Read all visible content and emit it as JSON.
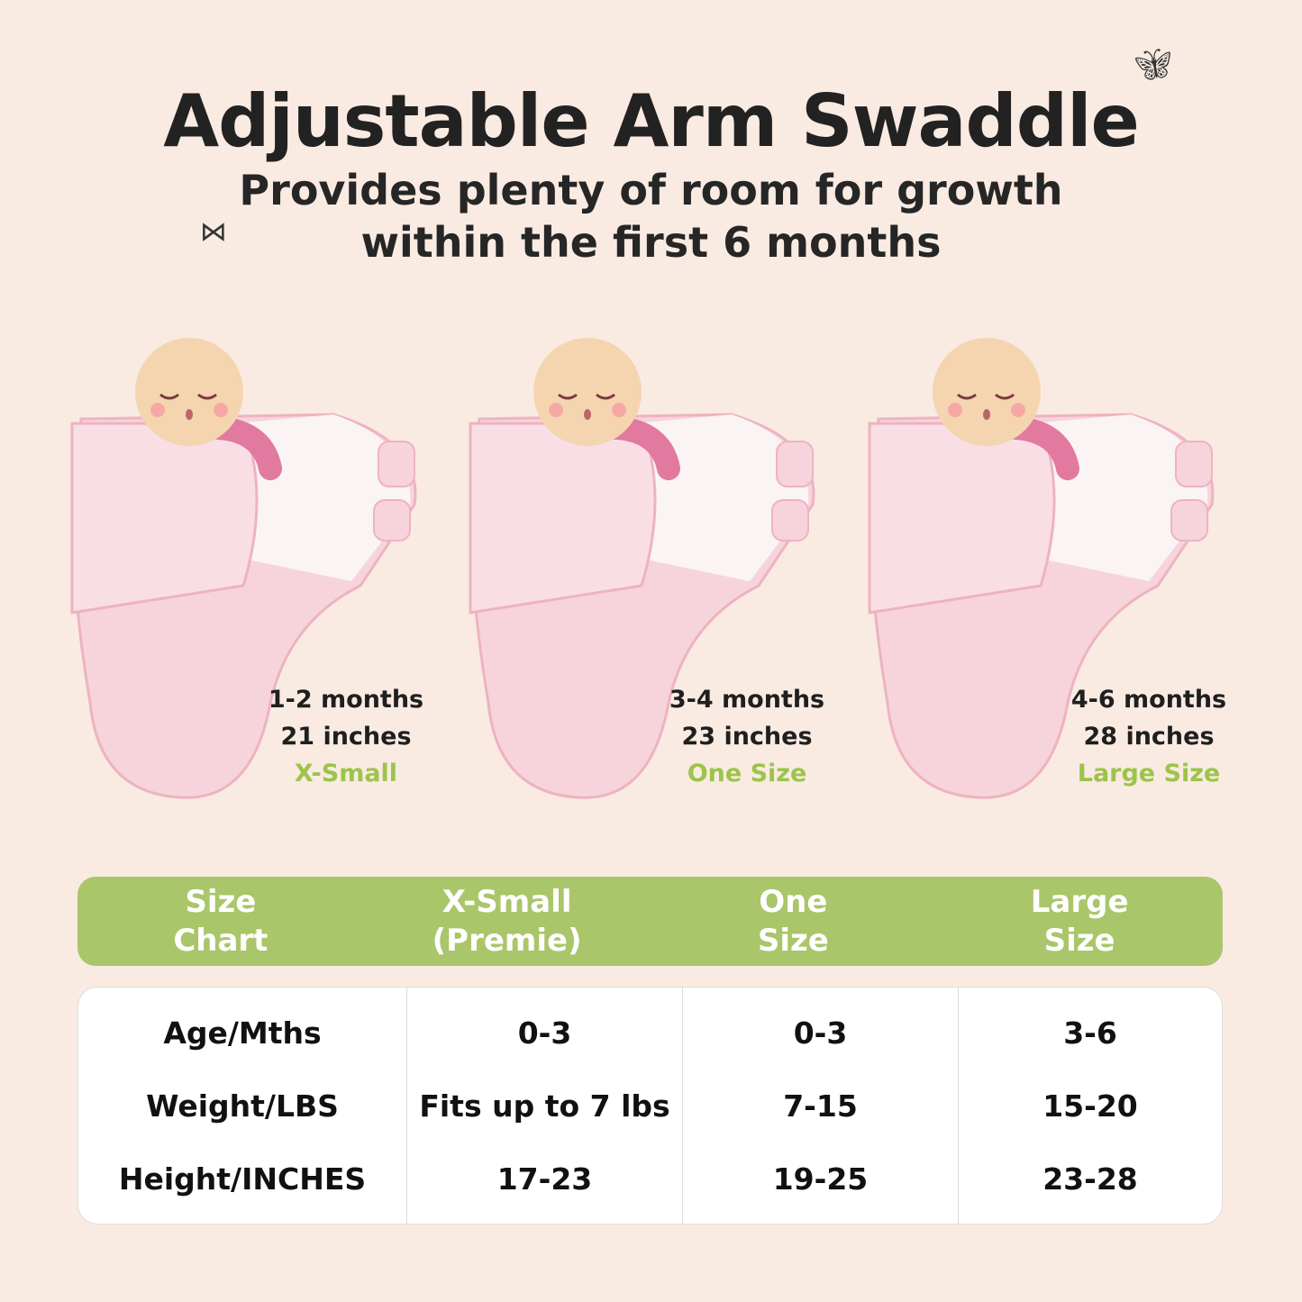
{
  "header": {
    "title": "Adjustable Arm Swaddle",
    "subtitle_line1": "Provides plenty of room for growth",
    "subtitle_line2": "within the first 6 months"
  },
  "swaddles": [
    {
      "age": "1-2 months",
      "length": "21 inches",
      "size": "X-Small"
    },
    {
      "age": "3-4 months",
      "length": "23 inches",
      "size": "One Size"
    },
    {
      "age": "4-6 months",
      "length": "28 inches",
      "size": "Large Size"
    }
  ],
  "colors": {
    "background": "#f9ebe2",
    "accent_green": "#a9c66a",
    "size_label_green": "#9cc44a",
    "swaddle_pink": "#f7d4dc"
  },
  "size_chart": {
    "headers": [
      "Size\nChart",
      "X-Small\n(Premie)",
      "One\nSize",
      "Large\nSize"
    ],
    "row_labels": [
      "Age/Mths",
      "Weight/LBS",
      "Height/INCHES"
    ],
    "columns": [
      [
        "0-3",
        "Fits up to 7 lbs",
        "17-23"
      ],
      [
        "0-3",
        "7-15",
        "19-25"
      ],
      [
        "3-6",
        "15-20",
        "23-28"
      ]
    ]
  }
}
